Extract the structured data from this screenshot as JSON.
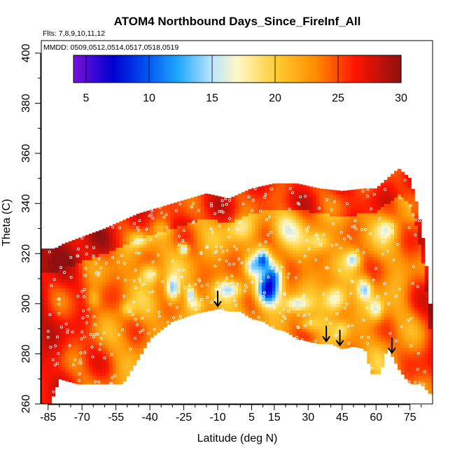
{
  "chart_data": {
    "type": "heatmap",
    "title": "ATOM4 Northbound Days_Since_FireInf_All",
    "subtitle": "Flts: 7,8,9,10,11,12",
    "annotation": "MMDD: 0509,0512,0514,0517,0518,0519",
    "xlabel": "Latitude (deg N)",
    "ylabel": "Theta (C)",
    "xlim": [
      -88,
      85
    ],
    "ylim": [
      260,
      405
    ],
    "x_ticks": [
      -85,
      -70,
      -55,
      -40,
      -25,
      -10,
      5,
      15,
      30,
      45,
      60,
      75
    ],
    "x_tick_labels": [
      "-85",
      "-70",
      "-55",
      "-40",
      "-25",
      "-10",
      "5",
      "15",
      "30",
      "45",
      "60",
      "75"
    ],
    "y_ticks": [
      260,
      280,
      300,
      320,
      340,
      360,
      380,
      400
    ],
    "y_tick_labels": [
      "260",
      "280",
      "300",
      "320",
      "340",
      "360",
      "380",
      "400"
    ],
    "colorbar": {
      "range": [
        4,
        30
      ],
      "ticks": [
        5,
        10,
        15,
        20,
        25,
        30
      ],
      "tick_labels": [
        "5",
        "10",
        "15",
        "20",
        "25",
        "30"
      ],
      "colors": [
        "#6a0dc0",
        "#0000c8",
        "#1e90ff",
        "#00c0ff",
        "#ffffff",
        "#fff6a0",
        "#ffc020",
        "#ff8c00",
        "#ff1a00",
        "#9a1010"
      ],
      "placement": "top-inside"
    },
    "arrows_at_latitude": [
      -10,
      38,
      44,
      67
    ],
    "grid": false,
    "legend": "none"
  }
}
